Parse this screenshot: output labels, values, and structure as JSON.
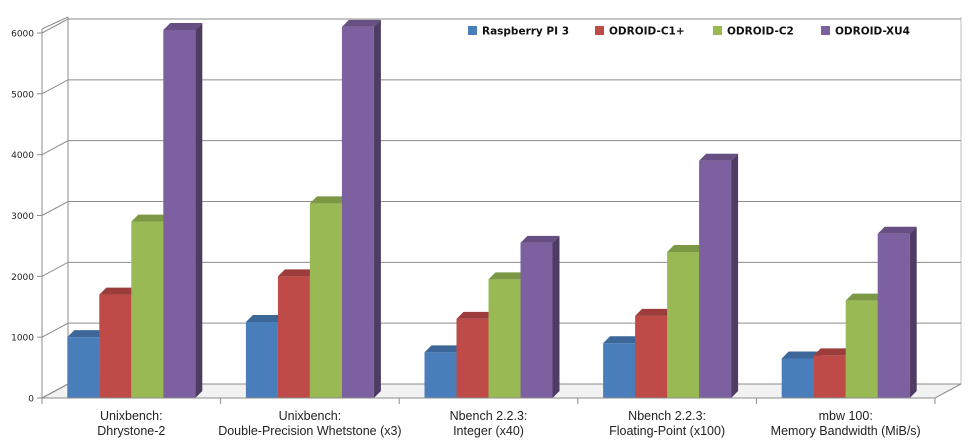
{
  "chart_data": {
    "type": "bar",
    "title": "",
    "xlabel": "",
    "ylabel": "",
    "ylim": [
      0,
      6000
    ],
    "yticks": [
      0,
      1000,
      2000,
      3000,
      4000,
      5000,
      6000
    ],
    "grid": true,
    "legend_position": "top-right",
    "categories": [
      [
        "Unixbench:",
        "Dhrystone-2"
      ],
      [
        "Unixbench:",
        "Double-Precision Whetstone (x3)"
      ],
      [
        "Nbench 2.2.3:",
        "Integer (x40)"
      ],
      [
        "Nbench 2.2.3:",
        "Floating-Point (x100)"
      ],
      [
        "mbw 100:",
        "Memory Bandwidth (MiB/s)"
      ]
    ],
    "series": [
      {
        "name": "Raspberry PI 3",
        "color": "#4a7ebb",
        "values": [
          1000,
          1250,
          750,
          900,
          650
        ]
      },
      {
        "name": "ODROID-C1+",
        "color": "#be4b48",
        "values": [
          1700,
          2000,
          1300,
          1350,
          700
        ]
      },
      {
        "name": "ODROID-C2",
        "color": "#98b954",
        "values": [
          2900,
          3200,
          1950,
          2400,
          1600
        ]
      },
      {
        "name": "ODROID-XU4",
        "color": "#7d60a0",
        "values": [
          6050,
          6100,
          2550,
          3900,
          2700
        ]
      }
    ]
  }
}
